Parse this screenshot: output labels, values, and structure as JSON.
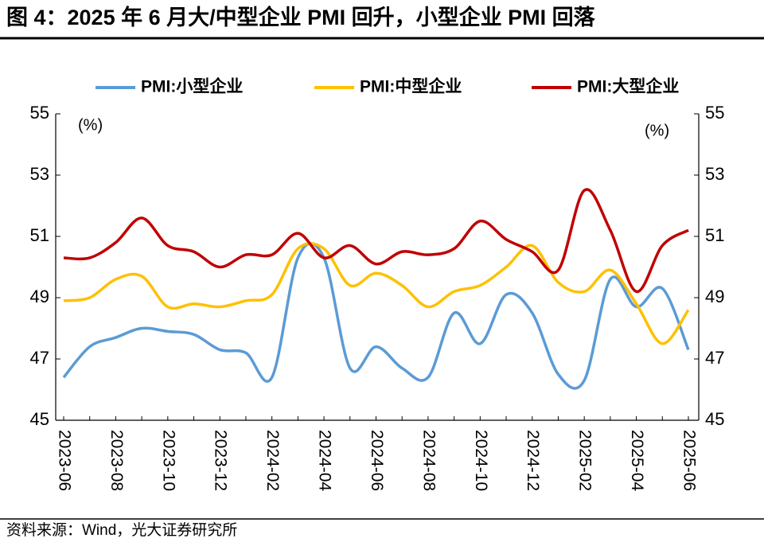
{
  "chart_data": {
    "type": "line",
    "title": "图 4：2025 年 6 月大/中型企业 PMI 回升，小型企业 PMI 回落",
    "source": "资料来源：Wind，光大证券研究所",
    "y_label": "(%)",
    "y2_label": "(%)",
    "categories": [
      "2023-06",
      null,
      "2023-08",
      null,
      "2023-10",
      null,
      "2023-12",
      null,
      "2024-02",
      null,
      "2024-04",
      null,
      "2024-06",
      null,
      "2024-08",
      null,
      "2024-10",
      null,
      "2024-12",
      null,
      "2025-02",
      null,
      "2025-04",
      null,
      "2025-06"
    ],
    "series": [
      {
        "name": "PMI:小型企业",
        "color": "#5b9bd5",
        "values": [
          46.4,
          47.4,
          47.7,
          48.0,
          47.9,
          47.8,
          47.3,
          47.2,
          46.4,
          50.3,
          50.3,
          46.7,
          47.4,
          46.7,
          46.4,
          48.5,
          47.5,
          49.1,
          48.5,
          46.5,
          46.3,
          49.6,
          48.7,
          49.3,
          47.3
        ]
      },
      {
        "name": "PMI:中型企业",
        "color": "#ffc000",
        "values": [
          48.9,
          49.0,
          49.6,
          49.7,
          48.7,
          48.8,
          48.7,
          48.9,
          49.1,
          50.6,
          50.6,
          49.4,
          49.8,
          49.4,
          48.7,
          49.2,
          49.4,
          50.0,
          50.7,
          49.5,
          49.2,
          49.9,
          48.8,
          47.5,
          48.6
        ]
      },
      {
        "name": "PMI:大型企业",
        "color": "#c00000",
        "values": [
          50.3,
          50.3,
          50.8,
          51.6,
          50.7,
          50.5,
          50.0,
          50.4,
          50.4,
          51.1,
          50.3,
          50.7,
          50.1,
          50.5,
          50.4,
          50.6,
          51.5,
          50.9,
          50.5,
          49.9,
          52.5,
          51.2,
          49.2,
          50.7,
          51.2
        ]
      }
    ],
    "ylim": [
      45,
      55
    ],
    "yticks": [
      45,
      47,
      49,
      51,
      53,
      55
    ],
    "y2lim": [
      45,
      55
    ],
    "y2ticks": [
      45,
      47,
      49,
      51,
      53,
      55
    ],
    "grid": false,
    "legend": "top"
  }
}
